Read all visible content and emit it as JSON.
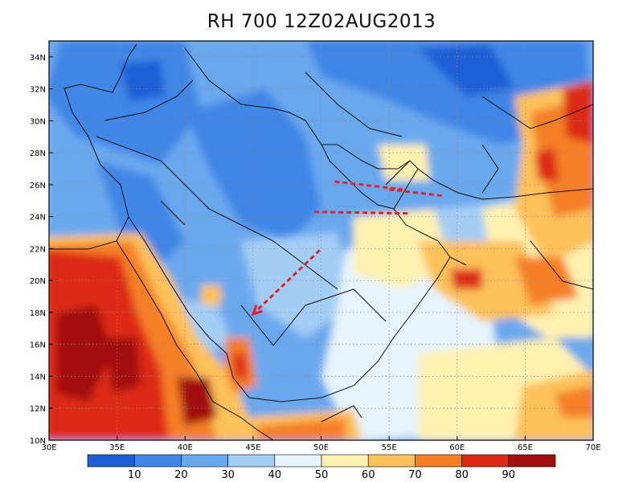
{
  "title": "RH 700 12Z02AUG2013",
  "map": {
    "projection": "latlon",
    "lon_range": [
      30,
      70
    ],
    "lat_range": [
      10,
      35
    ],
    "lon_ticks": [
      {
        "value": 30,
        "label": "30E"
      },
      {
        "value": 35,
        "label": "35E"
      },
      {
        "value": 40,
        "label": "40E"
      },
      {
        "value": 45,
        "label": "45E"
      },
      {
        "value": 50,
        "label": "50E"
      },
      {
        "value": 55,
        "label": "55E"
      },
      {
        "value": 60,
        "label": "60E"
      },
      {
        "value": 65,
        "label": "65E"
      },
      {
        "value": 70,
        "label": "70E"
      }
    ],
    "lat_ticks": [
      {
        "value": 10,
        "label": "10N"
      },
      {
        "value": 12,
        "label": "12N"
      },
      {
        "value": 14,
        "label": "14N"
      },
      {
        "value": 16,
        "label": "16N"
      },
      {
        "value": 18,
        "label": "18N"
      },
      {
        "value": 20,
        "label": "20N"
      },
      {
        "value": 22,
        "label": "22N"
      },
      {
        "value": 24,
        "label": "24N"
      },
      {
        "value": 26,
        "label": "26N"
      },
      {
        "value": 28,
        "label": "28N"
      },
      {
        "value": 30,
        "label": "30N"
      },
      {
        "value": 32,
        "label": "32N"
      },
      {
        "value": 34,
        "label": "34N"
      }
    ],
    "grid": true,
    "colorbar": {
      "position": "bottom",
      "colors": [
        "#1a5fd6",
        "#3f86e6",
        "#6aa8ee",
        "#a3cdf5",
        "#e6f4fd",
        "#fff1b0",
        "#fdc15a",
        "#f57f26",
        "#dc2a17",
        "#a20d0d"
      ],
      "labels": [
        "10",
        "20",
        "30",
        "40",
        "50",
        "60",
        "70",
        "80",
        "90"
      ]
    },
    "annotations": {
      "color": "#e5222a",
      "style": "dashed",
      "lines": [
        {
          "from": [
            51.0,
            26.2
          ],
          "to": [
            56.0,
            25.7
          ]
        },
        {
          "from": [
            55.0,
            25.7
          ],
          "to": [
            59.0,
            25.3
          ]
        },
        {
          "from": [
            49.5,
            24.3
          ],
          "to": [
            56.5,
            24.2
          ]
        }
      ],
      "arrows": [
        {
          "from": [
            49.9,
            21.9
          ],
          "to": [
            45.0,
            17.9
          ]
        }
      ]
    }
  }
}
